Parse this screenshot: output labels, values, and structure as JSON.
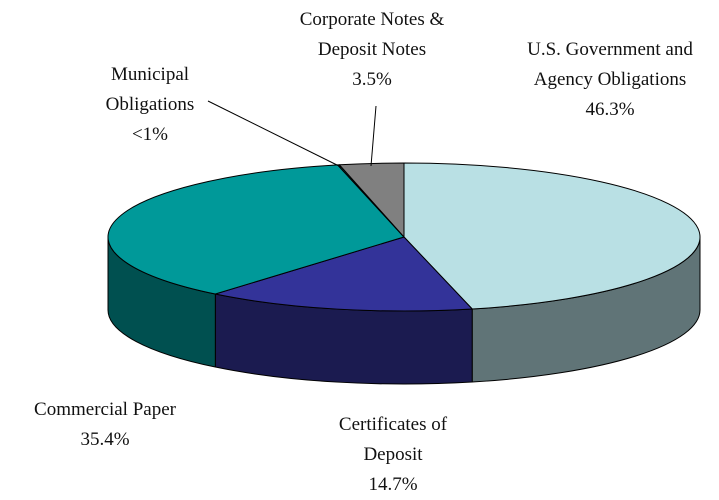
{
  "chart_data": {
    "type": "pie3d",
    "categories": [
      "U.S. Government and Agency Obligations",
      "Certificates of Deposit",
      "Commercial Paper",
      "Municipal Obligations",
      "Corporate Notes & Deposit Notes"
    ],
    "values": [
      46.3,
      14.7,
      35.4,
      0.1,
      3.5
    ],
    "value_labels": [
      "46.3%",
      "14.7%",
      "35.4%",
      "<1%",
      "3.5%"
    ],
    "colors": [
      "#b9e0e4",
      "#333399",
      "#009999",
      "#006666",
      "#808080"
    ]
  }
}
